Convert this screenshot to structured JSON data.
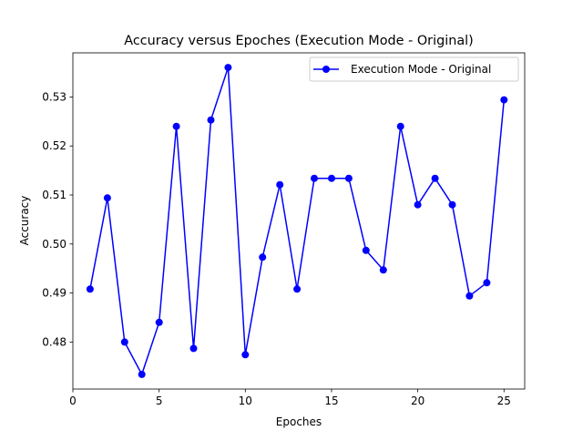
{
  "chart_data": {
    "type": "line",
    "title": "Accuracy versus Epoches (Execution Mode - Original)",
    "xlabel": "Epoches",
    "ylabel": "Accuracy",
    "xlim": [
      0,
      26.2
    ],
    "ylim": [
      0.4704,
      0.539
    ],
    "x_ticks": [
      0,
      5,
      10,
      15,
      20,
      25
    ],
    "x_tick_labels": [
      "0",
      "5",
      "10",
      "15",
      "20",
      "25"
    ],
    "y_ticks": [
      0.48,
      0.49,
      0.5,
      0.51,
      0.52,
      0.53
    ],
    "y_tick_labels": [
      "0.48",
      "0.49",
      "0.50",
      "0.51",
      "0.52",
      "0.53"
    ],
    "grid": false,
    "legend_position": "upper right",
    "series": [
      {
        "name": "Execution Mode - Original",
        "color": "#0000ff",
        "marker": "circle",
        "x": [
          1,
          2,
          3,
          4,
          5,
          6,
          7,
          8,
          9,
          10,
          11,
          12,
          13,
          14,
          15,
          16,
          17,
          18,
          19,
          20,
          21,
          22,
          23,
          24,
          25
        ],
        "y": [
          0.4908,
          0.5094,
          0.48,
          0.4734,
          0.484,
          0.524,
          0.4787,
          0.5253,
          0.536,
          0.4774,
          0.4973,
          0.5121,
          0.4908,
          0.5134,
          0.5134,
          0.5134,
          0.4987,
          0.4947,
          0.524,
          0.508,
          0.5134,
          0.508,
          0.4894,
          0.4921,
          0.5294
        ]
      }
    ]
  }
}
